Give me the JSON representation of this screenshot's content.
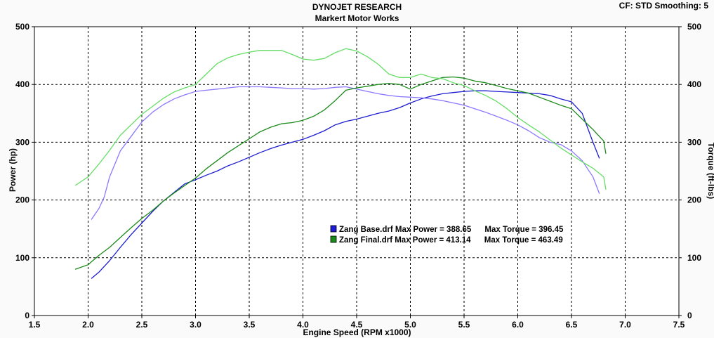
{
  "header": {
    "title": "DYNOJET RESEARCH",
    "subtitle": "Markert Motor Works",
    "settings": "CF: STD  Smoothing: 5"
  },
  "chart_data": {
    "type": "line",
    "title": "DYNOJET RESEARCH",
    "subtitle": "Markert Motor Works",
    "xlabel": "Engine Speed (RPM x1000)",
    "ylabel": "Power (hp)",
    "y2label": "Torque (ft-lbs)",
    "xlim": [
      1.5,
      7.5
    ],
    "ylim": [
      0,
      500
    ],
    "y2lim": [
      0,
      500
    ],
    "x_ticks": [
      "1.5",
      "2.0",
      "2.5",
      "3.0",
      "3.5",
      "4.0",
      "4.5",
      "5.0",
      "5.5",
      "6.0",
      "6.5",
      "7.0",
      "7.5"
    ],
    "y_ticks": [
      "0",
      "100",
      "200",
      "300",
      "400",
      "500"
    ],
    "y2_ticks": [
      "0",
      "100",
      "200",
      "300",
      "400",
      "500"
    ],
    "grid": true,
    "legend_position": "center-right",
    "legend": [
      {
        "label": "Zang Base.drf Max Power = 388.65      Max Torque = 396.45",
        "color": "#1c1cd0"
      },
      {
        "label": "Zang Final.drf Max Power = 413.14      Max Torque = 463.49",
        "color": "#1a8a1a"
      }
    ],
    "series": [
      {
        "name": "Zang Base.drf",
        "role": "power",
        "color": "#1c1cd0",
        "x": [
          2.03,
          2.1,
          2.2,
          2.3,
          2.4,
          2.5,
          2.6,
          2.7,
          2.8,
          2.9,
          3.0,
          3.1,
          3.2,
          3.3,
          3.4,
          3.5,
          3.6,
          3.7,
          3.8,
          3.9,
          4.0,
          4.1,
          4.2,
          4.3,
          4.4,
          4.5,
          4.6,
          4.7,
          4.8,
          4.9,
          5.0,
          5.1,
          5.2,
          5.3,
          5.4,
          5.5,
          5.6,
          5.7,
          5.8,
          5.9,
          6.0,
          6.1,
          6.2,
          6.3,
          6.4,
          6.5,
          6.6,
          6.7,
          6.76
        ],
        "y": [
          64,
          75,
          95,
          118,
          140,
          160,
          180,
          198,
          213,
          228,
          235,
          243,
          250,
          259,
          266,
          274,
          282,
          289,
          295,
          300,
          305,
          312,
          320,
          330,
          336,
          340,
          345,
          350,
          354,
          360,
          368,
          375,
          380,
          384,
          386,
          388,
          389,
          389,
          388,
          387,
          386,
          385,
          384,
          381,
          375,
          370,
          350,
          300,
          272
        ]
      },
      {
        "name": "Zang Base.drf",
        "role": "torque",
        "color": "#8a78ff",
        "x": [
          2.03,
          2.1,
          2.15,
          2.2,
          2.3,
          2.4,
          2.5,
          2.6,
          2.7,
          2.8,
          2.9,
          3.0,
          3.1,
          3.2,
          3.3,
          3.4,
          3.5,
          3.6,
          3.7,
          3.8,
          3.9,
          4.0,
          4.1,
          4.2,
          4.3,
          4.4,
          4.5,
          4.6,
          4.7,
          4.8,
          4.9,
          5.0,
          5.1,
          5.2,
          5.3,
          5.4,
          5.5,
          5.6,
          5.7,
          5.8,
          5.9,
          6.0,
          6.1,
          6.2,
          6.3,
          6.4,
          6.5,
          6.6,
          6.7,
          6.76
        ],
        "y": [
          166,
          185,
          205,
          240,
          285,
          310,
          335,
          352,
          365,
          375,
          382,
          388,
          390,
          392,
          394,
          396,
          396,
          396,
          395,
          394,
          393,
          393,
          392,
          393,
          395,
          396,
          392,
          388,
          384,
          381,
          379,
          378,
          377,
          375,
          372,
          368,
          364,
          358,
          352,
          345,
          338,
          330,
          320,
          308,
          300,
          296,
          285,
          268,
          240,
          211
        ]
      },
      {
        "name": "Zang Final.drf",
        "role": "power",
        "color": "#1a8a1a",
        "x": [
          1.88,
          2.0,
          2.1,
          2.2,
          2.3,
          2.4,
          2.5,
          2.6,
          2.7,
          2.8,
          2.9,
          3.0,
          3.1,
          3.2,
          3.3,
          3.4,
          3.5,
          3.6,
          3.7,
          3.8,
          3.9,
          4.0,
          4.1,
          4.2,
          4.3,
          4.4,
          4.5,
          4.6,
          4.7,
          4.8,
          4.9,
          5.0,
          5.1,
          5.2,
          5.3,
          5.4,
          5.5,
          5.6,
          5.7,
          5.8,
          5.9,
          6.0,
          6.1,
          6.2,
          6.3,
          6.4,
          6.5,
          6.6,
          6.7,
          6.8,
          6.82
        ],
        "y": [
          80,
          88,
          104,
          118,
          135,
          152,
          168,
          182,
          198,
          212,
          225,
          238,
          254,
          268,
          282,
          294,
          306,
          318,
          326,
          332,
          334,
          338,
          345,
          356,
          372,
          390,
          394,
          397,
          400,
          402,
          400,
          392,
          400,
          406,
          412,
          413,
          411,
          406,
          403,
          398,
          393,
          389,
          385,
          378,
          371,
          364,
          358,
          340,
          322,
          302,
          280
        ]
      },
      {
        "name": "Zang Final.drf",
        "role": "torque",
        "color": "#66dd66",
        "x": [
          1.88,
          2.0,
          2.1,
          2.2,
          2.3,
          2.4,
          2.5,
          2.6,
          2.7,
          2.8,
          2.9,
          3.0,
          3.1,
          3.2,
          3.3,
          3.4,
          3.5,
          3.6,
          3.7,
          3.8,
          3.9,
          4.0,
          4.1,
          4.2,
          4.3,
          4.4,
          4.5,
          4.6,
          4.7,
          4.8,
          4.9,
          5.0,
          5.1,
          5.2,
          5.3,
          5.4,
          5.5,
          5.6,
          5.7,
          5.8,
          5.9,
          6.0,
          6.1,
          6.2,
          6.3,
          6.4,
          6.5,
          6.6,
          6.7,
          6.8,
          6.82
        ],
        "y": [
          225,
          240,
          262,
          286,
          312,
          330,
          348,
          362,
          376,
          387,
          394,
          400,
          418,
          436,
          446,
          452,
          456,
          459,
          459,
          459,
          452,
          444,
          442,
          445,
          455,
          462,
          458,
          448,
          435,
          418,
          412,
          412,
          418,
          412,
          410,
          403,
          398,
          389,
          381,
          371,
          358,
          343,
          330,
          318,
          304,
          290,
          278,
          266,
          255,
          240,
          218
        ]
      }
    ]
  }
}
